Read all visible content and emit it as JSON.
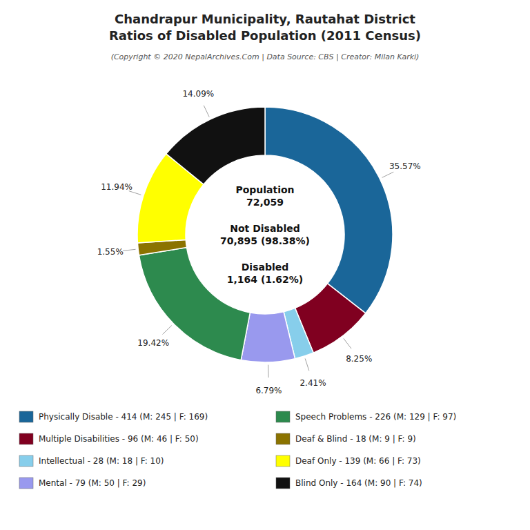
{
  "chart_data": {
    "type": "donut",
    "title": "Chandrapur Municipality, Rautahat District\nRatios of Disabled Population (2011 Census)",
    "subtitle": "(Copyright © 2020 NepalArchives.Com | Data Source: CBS | Creator: Milan Karki)",
    "categories": [
      "Physically Disable - 414 (M: 245 | F: 169)",
      "Multiple Disabilities - 96 (M: 46 | F: 50)",
      "Intellectual - 28 (M: 18 | F: 10)",
      "Mental - 79 (M: 50 | F: 29)",
      "Speech Problems - 226 (M: 129 | F: 97)",
      "Deaf & Blind - 18 (M: 9 | F: 9)",
      "Deaf Only - 139 (M: 66 | F: 73)",
      "Blind Only - 164 (M: 90 | F: 74)"
    ],
    "values": [
      35.57,
      8.25,
      2.41,
      6.79,
      19.42,
      1.55,
      11.94,
      14.09
    ],
    "value_labels": [
      "35.57%",
      "8.25%",
      "2.41%",
      "6.79%",
      "19.42%",
      "1.55%",
      "11.94%",
      "14.09%"
    ],
    "colors": [
      "#1a6699",
      "#800020",
      "#87ceeb",
      "#9999ee",
      "#2d8a4e",
      "#8b7300",
      "#ffff00",
      "#111111"
    ],
    "annotations": [
      "Population\n72,059",
      "Not Disabled\n70,895 (98.38%)",
      "Disabled\n1,164 (1.62%)"
    ],
    "data_labels": true,
    "legend": "bottom"
  }
}
